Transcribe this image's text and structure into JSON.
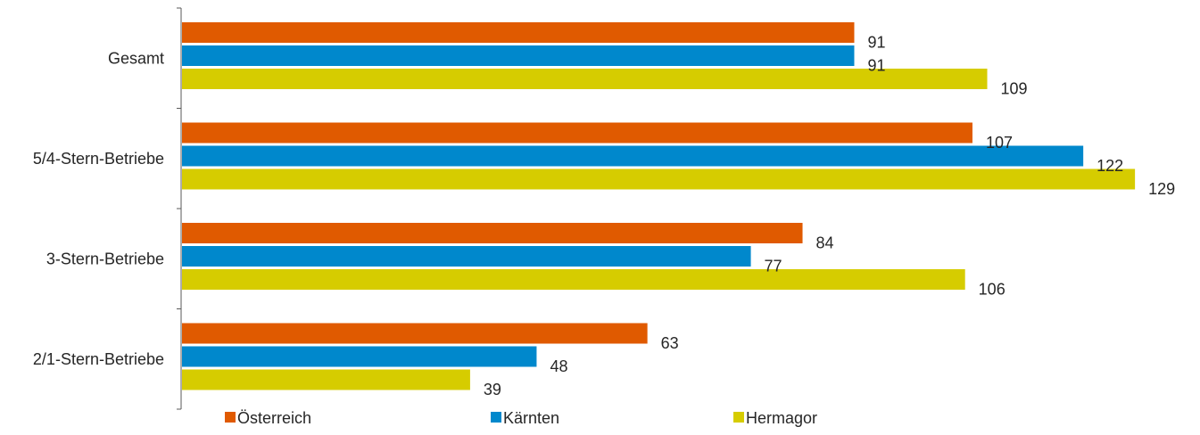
{
  "chart_data": {
    "type": "bar",
    "orientation": "horizontal",
    "title": "",
    "categories": [
      "Gesamt",
      "5/4-Stern-Betriebe",
      "3-Stern-Betriebe",
      "2/1-Stern-Betriebe"
    ],
    "series": [
      {
        "name": "Österreich",
        "color": "#E05A00",
        "values": [
          91,
          107,
          84,
          63
        ]
      },
      {
        "name": "Kärnten",
        "color": "#0088CC",
        "values": [
          91,
          122,
          77,
          48
        ]
      },
      {
        "name": "Hermagor",
        "color": "#D6CC00",
        "values": [
          109,
          129,
          106,
          39
        ]
      }
    ],
    "xlim": [
      0,
      130
    ],
    "legend_position": "bottom",
    "data_labels": true,
    "grid": false
  }
}
